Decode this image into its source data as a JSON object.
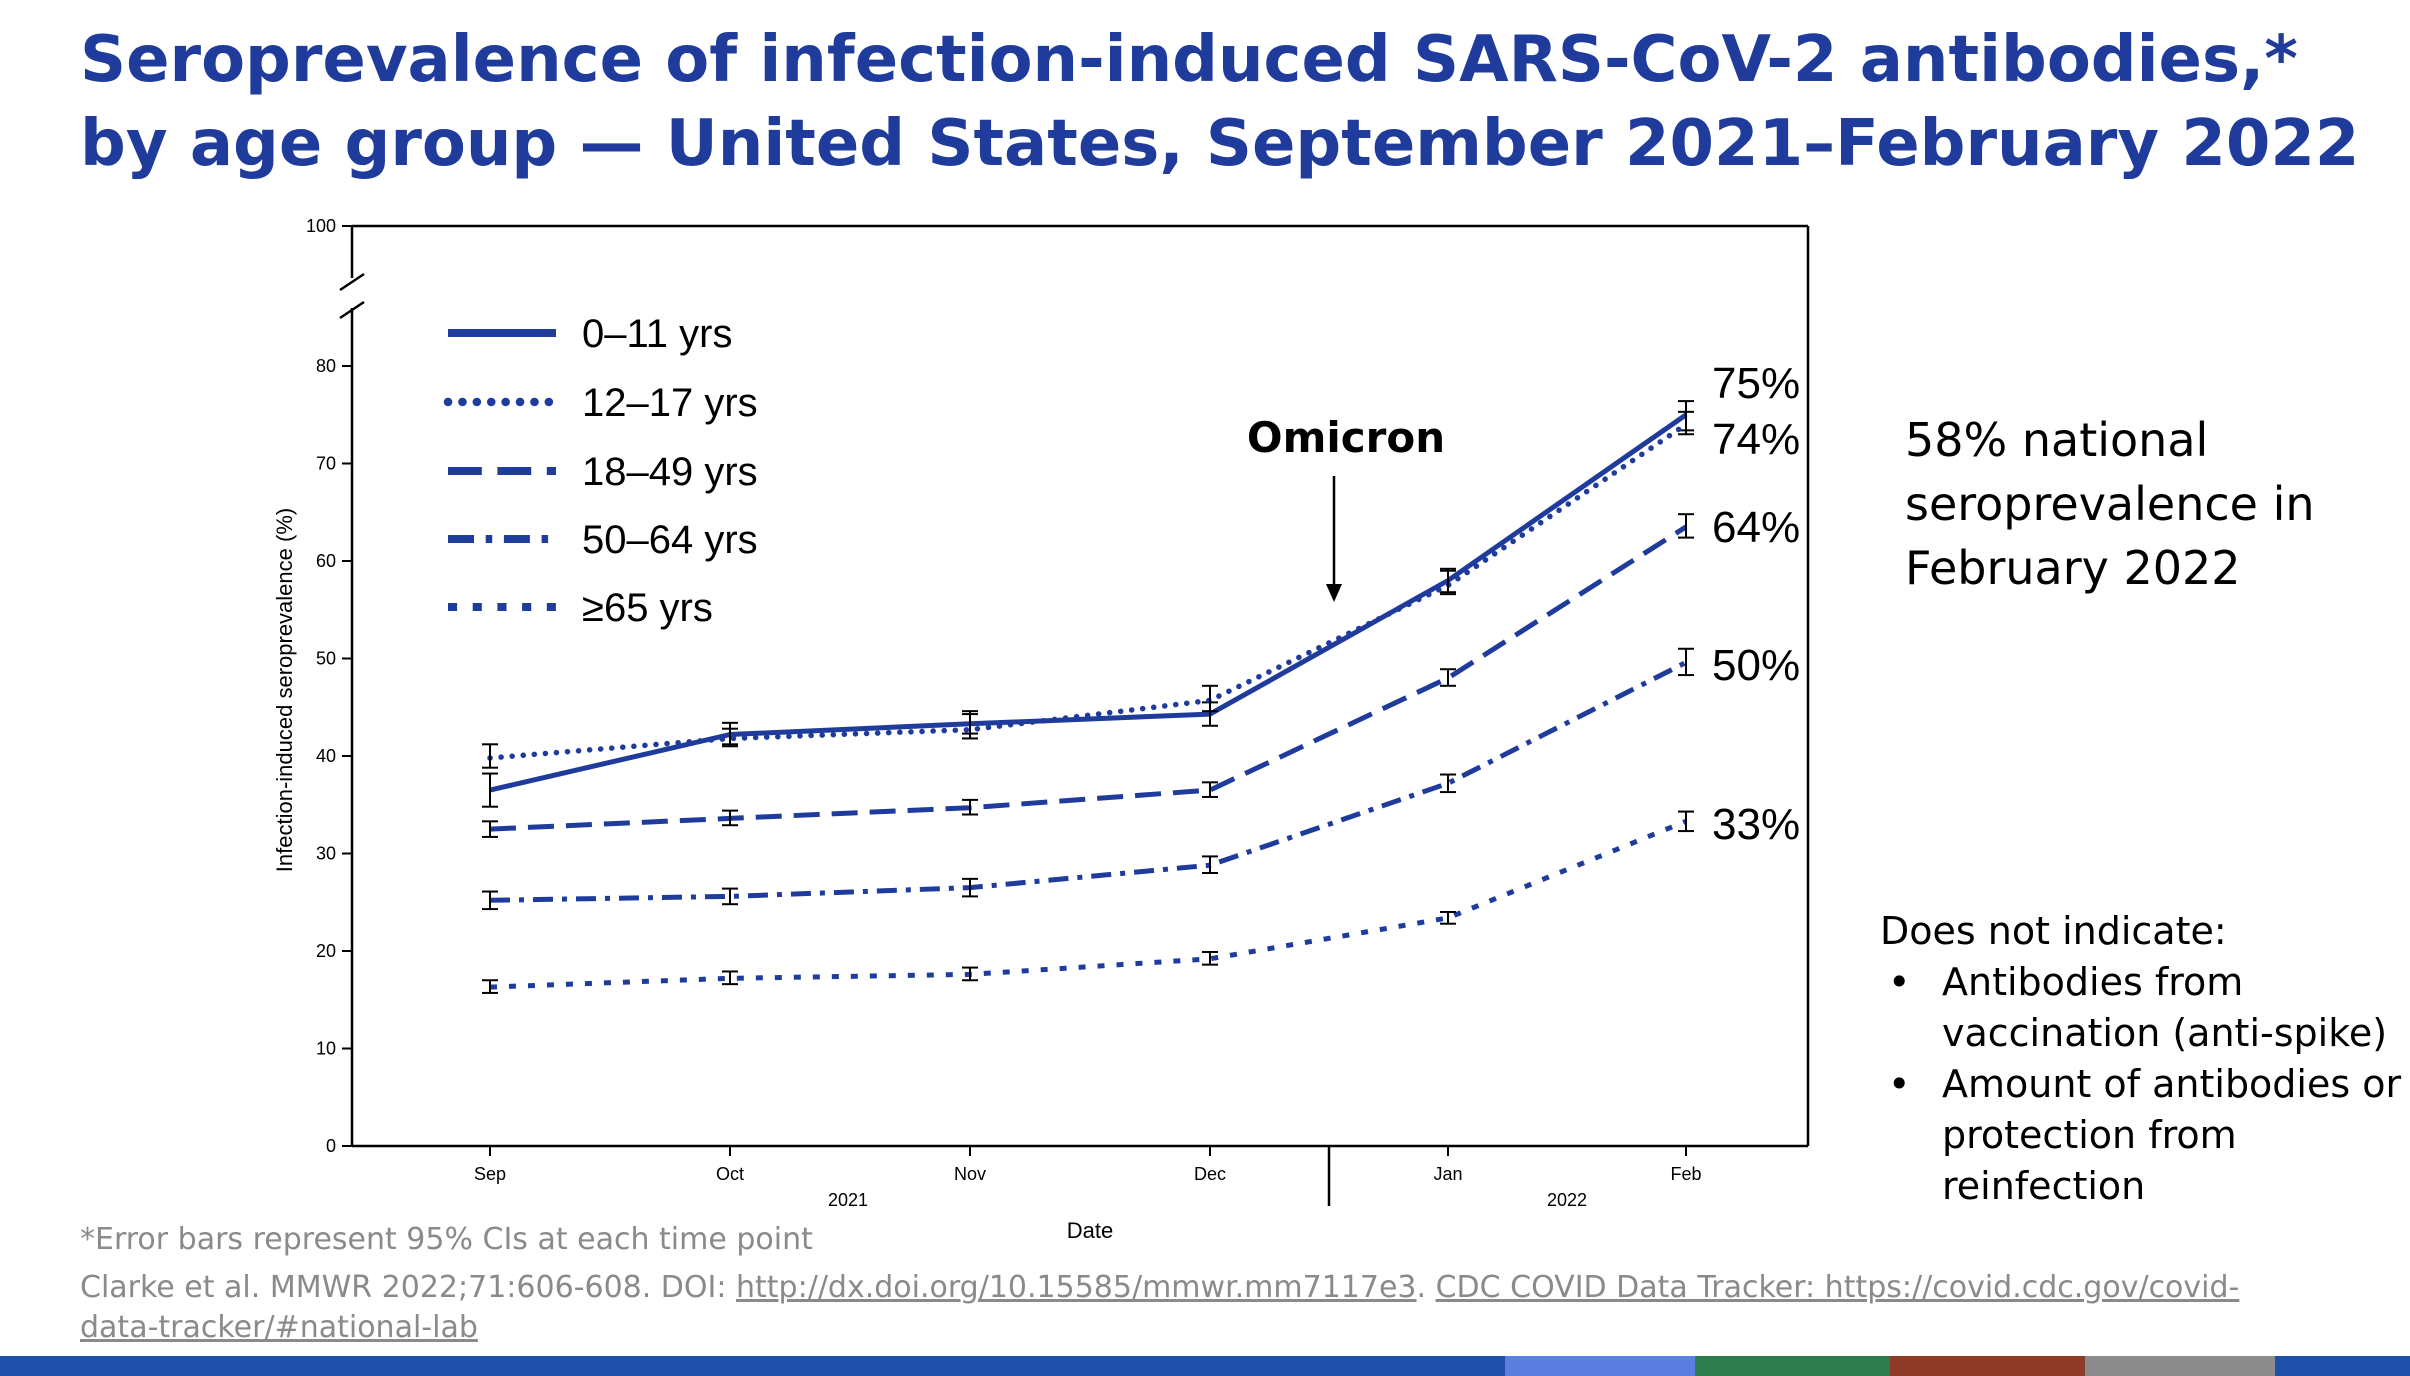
{
  "title": "Seroprevalence of infection-induced SARS-CoV-2 antibodies,* by age group — United States, September 2021–February 2022",
  "colors": {
    "title": "#1f3c9c",
    "series": "#1f3c9c",
    "footnote": "#8a8a8a"
  },
  "chart_data": {
    "type": "line",
    "xlabel": "Date",
    "ylabel": "Infection-induced seroprevalence (%)",
    "ylim": [
      0,
      100
    ],
    "y_axis_break": true,
    "y_ticks": [
      "0",
      "10",
      "20",
      "30",
      "40",
      "50",
      "60",
      "70",
      "80",
      "100"
    ],
    "categories": [
      "Sep",
      "Oct",
      "Nov",
      "Dec",
      "Jan",
      "Feb"
    ],
    "year_labels": [
      {
        "label": "2021",
        "spans": [
          "Sep",
          "Dec"
        ]
      },
      {
        "label": "2022",
        "spans": [
          "Jan",
          "Feb"
        ]
      }
    ],
    "grid": false,
    "legend_position": "top-left",
    "series": [
      {
        "name": "0–11 yrs",
        "style": "solid",
        "values": [
          36.5,
          42.2,
          43.3,
          44.3,
          58.0,
          75.0
        ],
        "ci_low": [
          34.8,
          41.2,
          42.3,
          43.1,
          56.8,
          73.4
        ],
        "ci_high": [
          38.2,
          43.4,
          44.3,
          45.5,
          59.2,
          76.4
        ]
      },
      {
        "name": "12–17 yrs",
        "style": "dotted",
        "values": [
          39.8,
          41.8,
          42.7,
          45.7,
          57.5,
          74.0
        ],
        "ci_low": [
          38.8,
          41.0,
          41.8,
          44.6,
          56.6,
          73.0
        ],
        "ci_high": [
          41.2,
          42.8,
          44.6,
          47.2,
          59.0,
          75.3
        ]
      },
      {
        "name": "18–49 yrs",
        "style": "dashed",
        "values": [
          32.5,
          33.6,
          34.7,
          36.5,
          48.0,
          63.5
        ],
        "ci_low": [
          31.7,
          32.9,
          34.0,
          35.8,
          47.2,
          62.4
        ],
        "ci_high": [
          33.3,
          34.4,
          35.5,
          37.3,
          48.9,
          64.8
        ]
      },
      {
        "name": "50–64 yrs",
        "style": "dash-dot",
        "values": [
          25.2,
          25.6,
          26.5,
          28.8,
          37.2,
          49.6
        ],
        "ci_low": [
          24.3,
          24.8,
          25.6,
          28.0,
          36.3,
          48.3
        ],
        "ci_high": [
          26.1,
          26.4,
          27.4,
          29.7,
          38.1,
          51.0
        ]
      },
      {
        "name": "≥65 yrs",
        "style": "short-dash",
        "values": [
          16.3,
          17.2,
          17.6,
          19.2,
          23.4,
          33.3
        ],
        "ci_low": [
          15.7,
          16.6,
          17.0,
          18.6,
          22.8,
          32.3
        ],
        "ci_high": [
          17.0,
          17.9,
          18.3,
          19.9,
          24.0,
          34.3
        ]
      }
    ],
    "end_labels": [
      "75%",
      "74%",
      "64%",
      "50%",
      "33%"
    ],
    "annotations": [
      {
        "text": "Omicron",
        "points_to": "between Dec and Jan"
      }
    ]
  },
  "national_note": "58% national seroprevalence in February 2022",
  "limitations": {
    "heading": "Does not indicate:",
    "items": [
      "Antibodies from vaccination (anti-spike)",
      "Amount of antibodies or protection from reinfection"
    ]
  },
  "footnote": "*Error bars represent 95% CIs at each time point",
  "citation": {
    "prefix": "Clarke et al. MMWR 2022;71:606-608. DOI: ",
    "doi_link": "http://dx.doi.org/10.15585/mmwr.mm7117e3",
    "separator": ". ",
    "tracker_link": "CDC COVID Data Tracker: https://covid.cdc.gov/covid-data-tracker/#national-lab"
  },
  "bottom_bar": {
    "colors": [
      "#1f4fa8",
      "#5a7fe0",
      "#2e7d4f",
      "#8f3b2a",
      "#8c8c8c",
      "#1f4fa8"
    ]
  }
}
